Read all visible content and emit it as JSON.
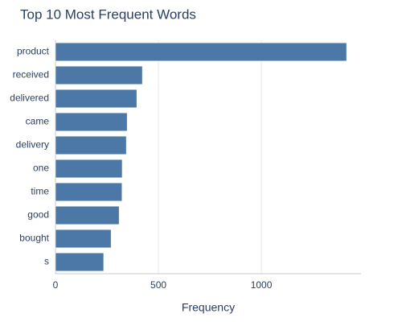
{
  "chart_data": {
    "type": "bar",
    "orientation": "horizontal",
    "title": "Top 10 Most Frequent Words",
    "x_label": "Frequency",
    "categories": [
      "product",
      "received",
      "delivered",
      "came",
      "delivery",
      "one",
      "time",
      "good",
      "bought",
      "s"
    ],
    "values": [
      1414,
      422,
      395,
      348,
      344,
      324,
      323,
      309,
      270,
      234
    ],
    "color": "#4c78a8",
    "xlim": [
      0,
      1484
    ],
    "xticks": [
      0,
      500,
      1000
    ],
    "grid": true
  }
}
